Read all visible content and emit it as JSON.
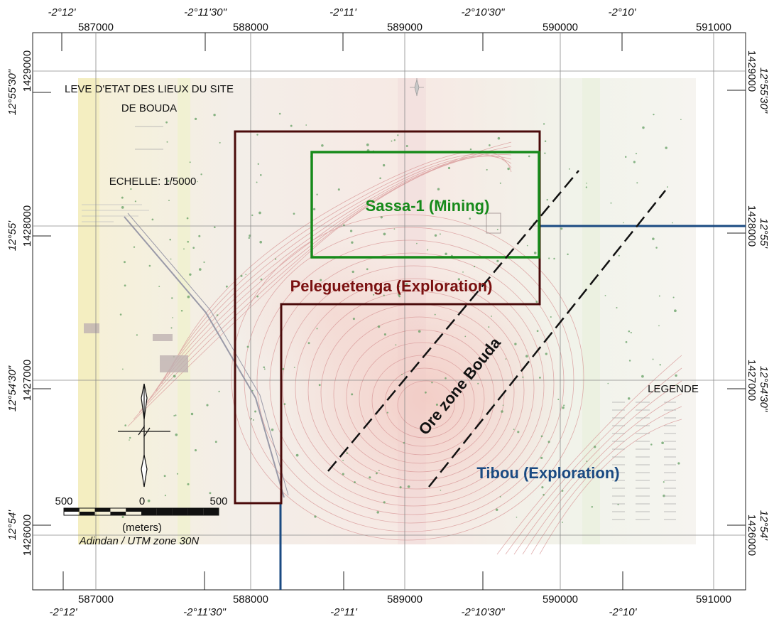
{
  "grid": {
    "easting_labels": [
      "587000",
      "588000",
      "589000",
      "590000",
      "591000"
    ],
    "northing_labels": [
      "1429000",
      "1428000",
      "1427000",
      "1426000"
    ],
    "longitude_labels": [
      "-2°12'",
      "-2°11'30\"",
      "-2°11'",
      "-2°10'30\"",
      "-2°10'"
    ],
    "latitude_labels": [
      "12°55'30\"",
      "12°55'",
      "12°54'30\"",
      "12°54'"
    ]
  },
  "scan": {
    "title_line1": "LEVE D'ETAT DES LIEUX DU SITE",
    "title_line2": "DE BOUDA",
    "scale_text": "ECHELLE: 1/5000",
    "legend_title": "LEGENDE"
  },
  "zones": {
    "sassa": {
      "label": "Sassa-1 (Mining)",
      "color": "#168a1a"
    },
    "peleguetenga": {
      "label": "Peleguetenga (Exploration)",
      "color": "#7a1010"
    },
    "tibou": {
      "label": "Tibou (Exploration)",
      "color": "#1a4a82"
    },
    "ore_zone": {
      "label": "Ore zone Bouda",
      "color": "#111111"
    }
  },
  "scalebar": {
    "labels": [
      "500",
      "0",
      "500"
    ],
    "unit": "(meters)",
    "datum": "Adindan / UTM zone 30N"
  },
  "north_arrow": {
    "icon": "north-arrow-icon"
  }
}
